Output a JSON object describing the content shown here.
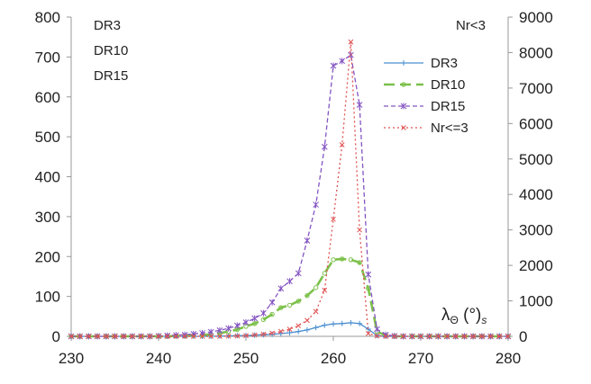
{
  "chart_data": {
    "type": "line",
    "xlim": [
      230,
      280
    ],
    "ylim_left": [
      0,
      800
    ],
    "ylim_right": [
      0,
      9000
    ],
    "x_ticks": [
      "230",
      "240",
      "250",
      "260",
      "270",
      "280"
    ],
    "y_left_ticks": [
      "0",
      "100",
      "200",
      "300",
      "400",
      "500",
      "600",
      "700",
      "800"
    ],
    "y_right_ticks": [
      "0",
      "1000",
      "2000",
      "3000",
      "4000",
      "5000",
      "6000",
      "7000",
      "8000",
      "9000"
    ],
    "xlabel": "λΘ (°)s",
    "left_axis_labels": [
      "DR3",
      "DR10",
      "DR15"
    ],
    "right_axis_label": "Nr<3",
    "legend_position": "top-right",
    "grid": false,
    "series": [
      {
        "name": "DR3",
        "axis": "left",
        "color": "#4a8fd0",
        "dash": "",
        "marker": "plus",
        "x": [
          230,
          231,
          232,
          233,
          234,
          235,
          236,
          237,
          238,
          239,
          240,
          241,
          242,
          243,
          244,
          245,
          246,
          247,
          248,
          249,
          250,
          251,
          252,
          253,
          254,
          255,
          256,
          257,
          258,
          259,
          260,
          261,
          262,
          263,
          264,
          265,
          266,
          267,
          268,
          269,
          270,
          271,
          272,
          273,
          274,
          275,
          276,
          277,
          278,
          279,
          280
        ],
        "y": [
          0,
          0,
          0,
          0,
          0,
          0,
          0,
          0,
          0,
          0,
          0,
          0,
          0,
          0,
          0,
          0,
          0,
          1,
          1,
          2,
          2,
          3,
          4,
          5,
          7,
          9,
          12,
          16,
          22,
          28,
          31,
          32,
          34,
          32,
          18,
          2,
          0,
          0,
          0,
          0,
          0,
          0,
          0,
          0,
          0,
          0,
          0,
          0,
          0,
          0,
          0
        ]
      },
      {
        "name": "DR10",
        "axis": "left",
        "color": "#7cc04a",
        "dash": "12 6",
        "marker": "circle",
        "x": [
          230,
          231,
          232,
          233,
          234,
          235,
          236,
          237,
          238,
          239,
          240,
          241,
          242,
          243,
          244,
          245,
          246,
          247,
          248,
          249,
          250,
          251,
          252,
          253,
          254,
          255,
          256,
          257,
          258,
          259,
          260,
          261,
          262,
          263,
          264,
          265,
          266,
          267,
          268,
          269,
          270,
          271,
          272,
          273,
          274,
          275,
          276,
          277,
          278,
          279,
          280
        ],
        "y": [
          0,
          0,
          0,
          0,
          0,
          0,
          0,
          0,
          0,
          0,
          0,
          0,
          1,
          1,
          2,
          3,
          5,
          8,
          12,
          17,
          25,
          32,
          42,
          55,
          72,
          78,
          88,
          102,
          122,
          158,
          192,
          194,
          192,
          185,
          120,
          12,
          2,
          0,
          0,
          0,
          0,
          0,
          0,
          0,
          0,
          0,
          0,
          0,
          0,
          0,
          0
        ]
      },
      {
        "name": "DR15",
        "axis": "left",
        "color": "#8455c2",
        "dash": "5 3",
        "marker": "star",
        "x": [
          230,
          231,
          232,
          233,
          234,
          235,
          236,
          237,
          238,
          239,
          240,
          241,
          242,
          243,
          244,
          245,
          246,
          247,
          248,
          249,
          250,
          251,
          252,
          253,
          254,
          255,
          256,
          257,
          258,
          259,
          260,
          261,
          262,
          263,
          264,
          265,
          266,
          267,
          268,
          269,
          270,
          271,
          272,
          273,
          274,
          275,
          276,
          277,
          278,
          279,
          280
        ],
        "y": [
          0,
          0,
          0,
          0,
          0,
          0,
          0,
          0,
          0,
          0,
          1,
          2,
          3,
          4,
          6,
          8,
          11,
          15,
          20,
          27,
          35,
          45,
          58,
          85,
          120,
          138,
          158,
          240,
          330,
          475,
          678,
          690,
          705,
          580,
          155,
          18,
          4,
          1,
          0,
          0,
          0,
          0,
          0,
          0,
          0,
          0,
          0,
          0,
          0,
          0,
          0
        ]
      },
      {
        "name": "Nr<=3",
        "axis": "right",
        "color": "#e05050",
        "dash": "2 3",
        "marker": "x",
        "x": [
          230,
          231,
          232,
          233,
          234,
          235,
          236,
          237,
          238,
          239,
          240,
          241,
          242,
          243,
          244,
          245,
          246,
          247,
          248,
          249,
          250,
          251,
          252,
          253,
          254,
          255,
          256,
          257,
          258,
          259,
          260,
          261,
          262,
          263,
          264,
          265,
          266,
          267,
          268,
          269,
          270,
          271,
          272,
          273,
          274,
          275,
          276,
          277,
          278,
          279,
          280
        ],
        "y": [
          0,
          0,
          0,
          0,
          0,
          0,
          0,
          0,
          0,
          0,
          0,
          0,
          0,
          0,
          0,
          0,
          0,
          0,
          5,
          10,
          20,
          40,
          60,
          90,
          140,
          200,
          300,
          450,
          700,
          1300,
          3300,
          5400,
          8300,
          3000,
          80,
          10,
          0,
          0,
          0,
          0,
          0,
          0,
          0,
          0,
          0,
          0,
          0,
          0,
          0,
          0,
          0
        ]
      }
    ]
  }
}
